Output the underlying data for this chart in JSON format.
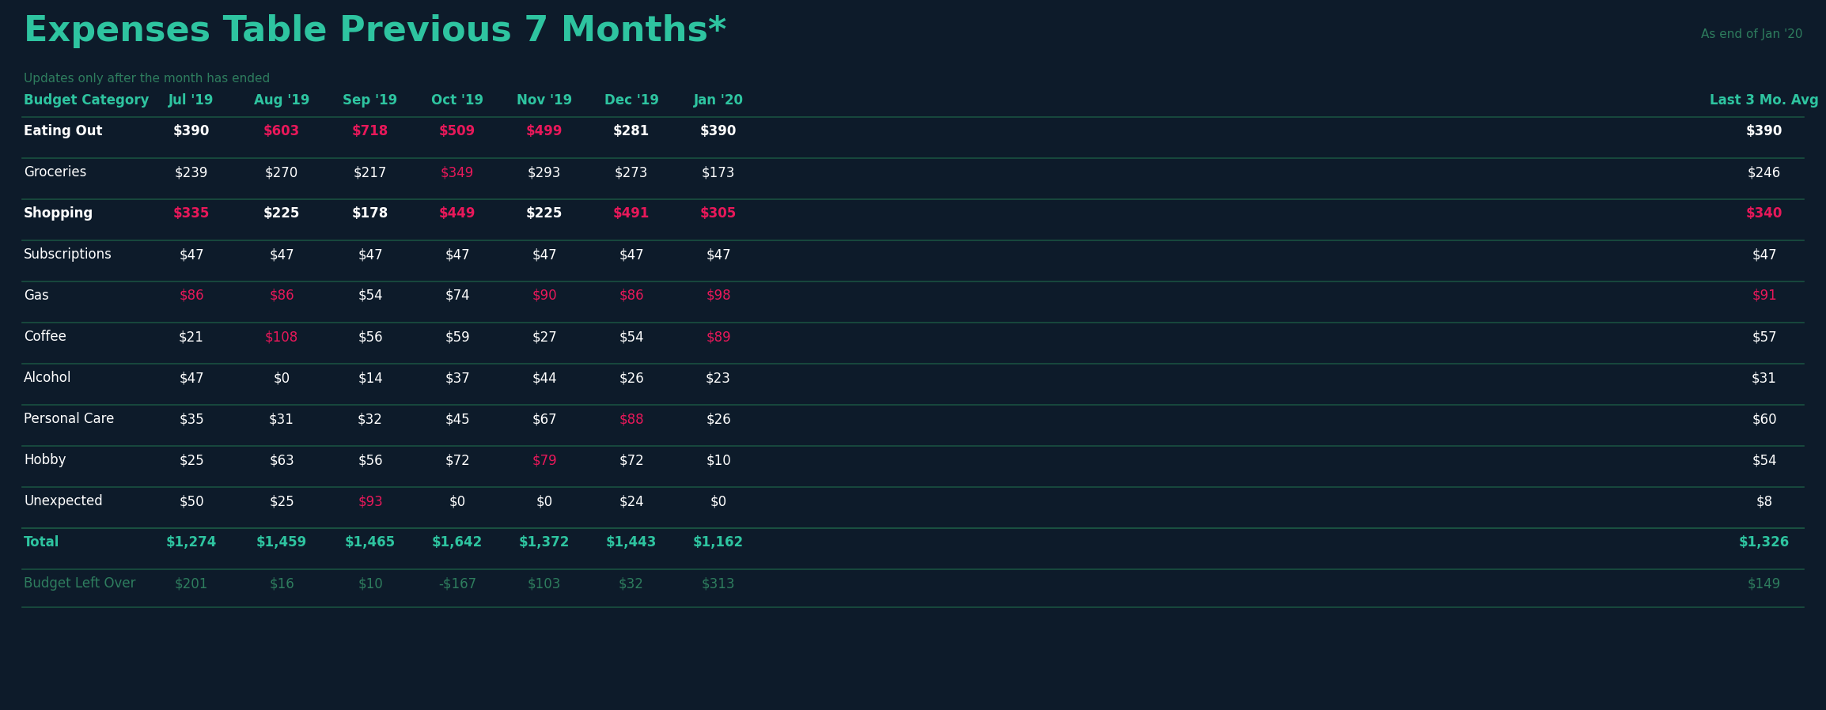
{
  "title": "Expenses Table Previous 7 Months*",
  "subtitle": "Updates only after the month has ended",
  "top_right_text": "As end of Jan '20",
  "bg_color": "#0d1b2a",
  "header_color": "#2ec4a0",
  "subtitle_color": "#2e7d5e",
  "top_right_color": "#2e7d5e",
  "white_text": "#ffffff",
  "red_text": "#e8185a",
  "teal_text": "#2ec4a0",
  "dim_teal_text": "#2e7d5e",
  "divider_color": "#1a5040",
  "columns": [
    "Budget Category",
    "Jul '19",
    "Aug '19",
    "Sep '19",
    "Oct '19",
    "Nov '19",
    "Dec '19",
    "Jan '20",
    "Last 3 Mo. Avg"
  ],
  "rows": [
    {
      "label": "Eating Out",
      "bold": true,
      "values": [
        "$390",
        "$603",
        "$718",
        "$509",
        "$499",
        "$281",
        "$390",
        "$390"
      ],
      "colors": [
        "white",
        "red",
        "red",
        "red",
        "red",
        "white",
        "white",
        "white"
      ]
    },
    {
      "label": "Groceries",
      "bold": false,
      "values": [
        "$239",
        "$270",
        "$217",
        "$349",
        "$293",
        "$273",
        "$173",
        "$246"
      ],
      "colors": [
        "white",
        "white",
        "white",
        "red",
        "white",
        "white",
        "white",
        "white"
      ]
    },
    {
      "label": "Shopping",
      "bold": true,
      "values": [
        "$335",
        "$225",
        "$178",
        "$449",
        "$225",
        "$491",
        "$305",
        "$340"
      ],
      "colors": [
        "red",
        "white",
        "white",
        "red",
        "white",
        "red",
        "red",
        "red"
      ]
    },
    {
      "label": "Subscriptions",
      "bold": false,
      "values": [
        "$47",
        "$47",
        "$47",
        "$47",
        "$47",
        "$47",
        "$47",
        "$47"
      ],
      "colors": [
        "white",
        "white",
        "white",
        "white",
        "white",
        "white",
        "white",
        "white"
      ]
    },
    {
      "label": "Gas",
      "bold": false,
      "values": [
        "$86",
        "$86",
        "$54",
        "$74",
        "$90",
        "$86",
        "$98",
        "$91"
      ],
      "colors": [
        "red",
        "red",
        "white",
        "white",
        "red",
        "red",
        "red",
        "red"
      ]
    },
    {
      "label": "Coffee",
      "bold": false,
      "values": [
        "$21",
        "$108",
        "$56",
        "$59",
        "$27",
        "$54",
        "$89",
        "$57"
      ],
      "colors": [
        "white",
        "red",
        "white",
        "white",
        "white",
        "white",
        "red",
        "white"
      ]
    },
    {
      "label": "Alcohol",
      "bold": false,
      "values": [
        "$47",
        "$0",
        "$14",
        "$37",
        "$44",
        "$26",
        "$23",
        "$31"
      ],
      "colors": [
        "white",
        "white",
        "white",
        "white",
        "white",
        "white",
        "white",
        "white"
      ]
    },
    {
      "label": "Personal Care",
      "bold": false,
      "values": [
        "$35",
        "$31",
        "$32",
        "$45",
        "$67",
        "$88",
        "$26",
        "$60"
      ],
      "colors": [
        "white",
        "white",
        "white",
        "white",
        "white",
        "red",
        "white",
        "white"
      ]
    },
    {
      "label": "Hobby",
      "bold": false,
      "values": [
        "$25",
        "$63",
        "$56",
        "$72",
        "$79",
        "$72",
        "$10",
        "$54"
      ],
      "colors": [
        "white",
        "white",
        "white",
        "white",
        "red",
        "white",
        "white",
        "white"
      ]
    },
    {
      "label": "Unexpected",
      "bold": false,
      "values": [
        "$50",
        "$25",
        "$93",
        "$0",
        "$0",
        "$24",
        "$0",
        "$8"
      ],
      "colors": [
        "white",
        "white",
        "red",
        "white",
        "white",
        "white",
        "white",
        "white"
      ]
    }
  ],
  "total_row": {
    "label": "Total",
    "values": [
      "$1,274",
      "$1,459",
      "$1,465",
      "$1,642",
      "$1,372",
      "$1,443",
      "$1,162",
      "$1,326"
    ],
    "colors": [
      "teal",
      "teal",
      "teal",
      "teal",
      "teal",
      "teal",
      "teal",
      "teal"
    ]
  },
  "budget_row": {
    "label": "Budget Left Over",
    "values": [
      "$201",
      "$16",
      "$10",
      "-$167",
      "$103",
      "$32",
      "$313",
      "$149"
    ],
    "colors": [
      "dim_teal",
      "dim_teal",
      "dim_teal",
      "dim_teal",
      "dim_teal",
      "dim_teal",
      "dim_teal",
      "dim_teal"
    ]
  }
}
